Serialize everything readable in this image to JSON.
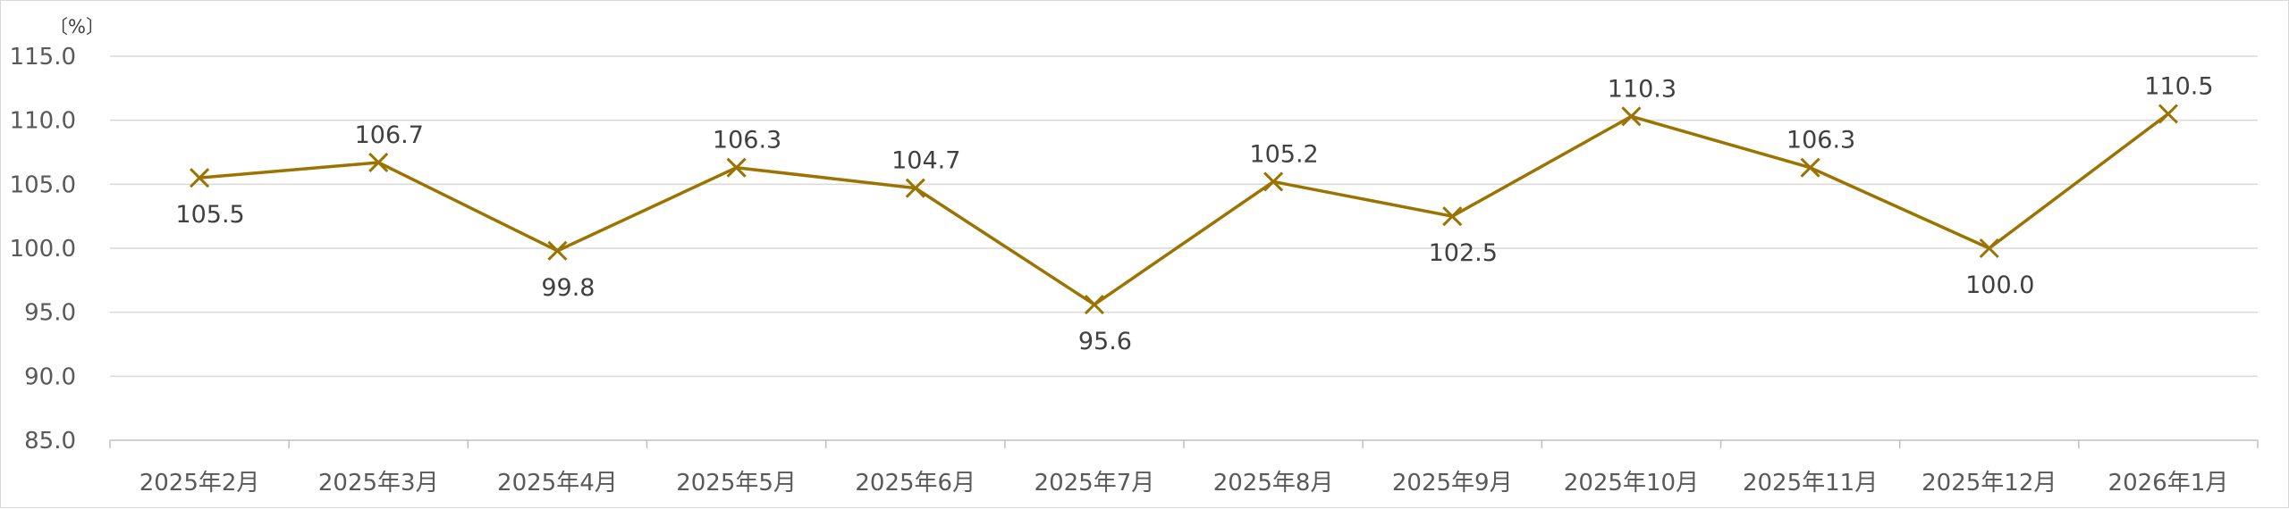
{
  "chart_data": {
    "type": "line",
    "unit_label": "〔%〕",
    "categories": [
      "2025年2月",
      "2025年3月",
      "2025年4月",
      "2025年5月",
      "2025年6月",
      "2025年7月",
      "2025年8月",
      "2025年9月",
      "2025年10月",
      "2025年11月",
      "2025年12月",
      "2026年1月"
    ],
    "series": [
      {
        "values": [
          105.5,
          106.7,
          99.8,
          106.3,
          104.7,
          95.6,
          105.2,
          102.5,
          110.3,
          106.3,
          100.0,
          110.5
        ],
        "labels": [
          "105.5",
          "106.7",
          "99.8",
          "106.3",
          "104.7",
          "95.6",
          "105.2",
          "102.5",
          "110.3",
          "106.3",
          "100.0",
          "110.5"
        ],
        "color": "#9a7300",
        "marker": "x"
      }
    ],
    "y_ticks": [
      "85.0",
      "90.0",
      "95.0",
      "100.0",
      "105.0",
      "110.0",
      "115.0"
    ],
    "ylim": [
      85,
      115
    ],
    "grid": true,
    "legend": "none"
  }
}
